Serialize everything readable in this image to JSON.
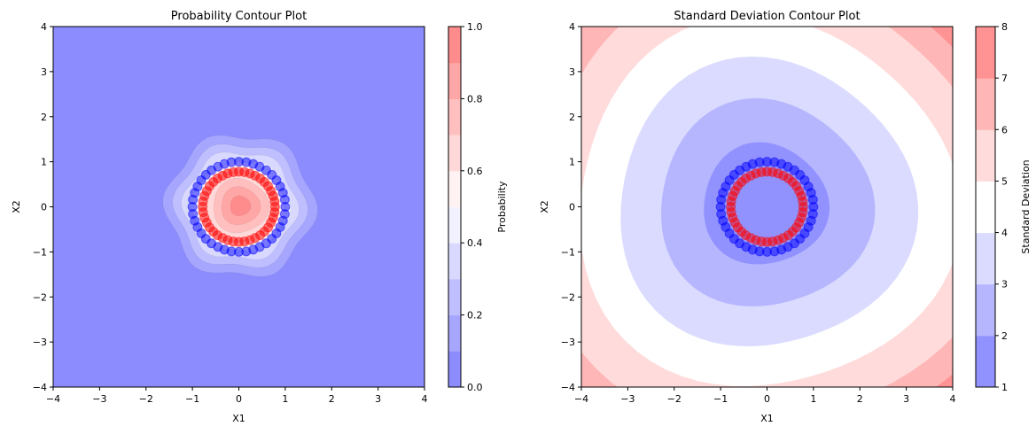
{
  "chart_data": [
    {
      "type": "contour",
      "title": "Probability Contour Plot",
      "xlabel": "X1",
      "ylabel": "X2",
      "xlim": [
        -4,
        4
      ],
      "ylim": [
        -4,
        4
      ],
      "xticks": [
        "−4",
        "−3",
        "−2",
        "−1",
        "0",
        "1",
        "2",
        "3",
        "4"
      ],
      "yticks": [
        "−4",
        "−3",
        "−2",
        "−1",
        "0",
        "1",
        "2",
        "3",
        "4"
      ],
      "colormap": "bwr",
      "alpha": 0.5,
      "colorbar": {
        "label": "Probability",
        "levels": [
          0,
          0.1,
          0.2,
          0.3,
          0.4,
          0.5,
          0.6,
          0.7,
          0.8,
          0.9,
          1.0
        ],
        "ticks": [
          "0.0",
          "0.2",
          "0.4",
          "0.6",
          "0.8",
          "1.0"
        ]
      }
    },
    {
      "type": "contour",
      "title": "Standard Deviation Contour Plot",
      "xlabel": "X1",
      "ylabel": "X2",
      "xlim": [
        -4,
        4
      ],
      "ylim": [
        -4,
        4
      ],
      "xticks": [
        "−4",
        "−3",
        "−2",
        "−1",
        "0",
        "1",
        "2",
        "3",
        "4"
      ],
      "yticks": [
        "−4",
        "−3",
        "−2",
        "−1",
        "0",
        "1",
        "2",
        "3",
        "4"
      ],
      "colormap": "bwr",
      "alpha": 0.5,
      "colorbar": {
        "label": "Standard Deviation",
        "levels": [
          1,
          2,
          3,
          4,
          5,
          6,
          7,
          8
        ],
        "ticks": [
          "1",
          "2",
          "3",
          "4",
          "5",
          "6",
          "7",
          "8"
        ]
      }
    }
  ],
  "scatter": {
    "class_blue": {
      "color": "#0000ff",
      "points": [
        [
          1.0,
          0.0
        ],
        [
          0.99,
          0.16
        ],
        [
          0.95,
          0.31
        ],
        [
          0.89,
          0.45
        ],
        [
          0.81,
          0.59
        ],
        [
          0.71,
          0.71
        ],
        [
          0.59,
          0.81
        ],
        [
          0.45,
          0.89
        ],
        [
          0.31,
          0.95
        ],
        [
          0.16,
          0.99
        ],
        [
          0.0,
          1.0
        ],
        [
          -0.16,
          0.99
        ],
        [
          -0.31,
          0.95
        ],
        [
          -0.45,
          0.89
        ],
        [
          -0.59,
          0.81
        ],
        [
          -0.71,
          0.71
        ],
        [
          -0.81,
          0.59
        ],
        [
          -0.89,
          0.45
        ],
        [
          -0.95,
          0.31
        ],
        [
          -0.99,
          0.16
        ],
        [
          -1.0,
          0.0
        ],
        [
          -0.99,
          -0.16
        ],
        [
          -0.95,
          -0.31
        ],
        [
          -0.89,
          -0.45
        ],
        [
          -0.81,
          -0.59
        ],
        [
          -0.71,
          -0.71
        ],
        [
          -0.59,
          -0.81
        ],
        [
          -0.45,
          -0.89
        ],
        [
          -0.31,
          -0.95
        ],
        [
          -0.16,
          -0.99
        ],
        [
          0.0,
          -1.0
        ],
        [
          0.16,
          -0.99
        ],
        [
          0.31,
          -0.95
        ],
        [
          0.45,
          -0.89
        ],
        [
          0.59,
          -0.81
        ],
        [
          0.71,
          -0.71
        ],
        [
          0.81,
          -0.59
        ],
        [
          0.89,
          -0.45
        ],
        [
          0.95,
          -0.31
        ],
        [
          0.99,
          -0.16
        ]
      ]
    },
    "class_red": {
      "color": "#ff0000",
      "points": [
        [
          0.78,
          0.0
        ],
        [
          0.77,
          0.12
        ],
        [
          0.74,
          0.24
        ],
        [
          0.69,
          0.35
        ],
        [
          0.63,
          0.46
        ],
        [
          0.55,
          0.55
        ],
        [
          0.46,
          0.63
        ],
        [
          0.35,
          0.69
        ],
        [
          0.24,
          0.74
        ],
        [
          0.12,
          0.77
        ],
        [
          0.0,
          0.78
        ],
        [
          -0.12,
          0.77
        ],
        [
          -0.24,
          0.74
        ],
        [
          -0.35,
          0.69
        ],
        [
          -0.46,
          0.63
        ],
        [
          -0.55,
          0.55
        ],
        [
          -0.63,
          0.46
        ],
        [
          -0.69,
          0.35
        ],
        [
          -0.74,
          0.24
        ],
        [
          -0.77,
          0.12
        ],
        [
          -0.78,
          0.0
        ],
        [
          -0.77,
          -0.12
        ],
        [
          -0.74,
          -0.24
        ],
        [
          -0.69,
          -0.35
        ],
        [
          -0.63,
          -0.46
        ],
        [
          -0.55,
          -0.55
        ],
        [
          -0.46,
          -0.63
        ],
        [
          -0.35,
          -0.69
        ],
        [
          -0.24,
          -0.74
        ],
        [
          -0.12,
          -0.77
        ],
        [
          0.0,
          -0.78
        ],
        [
          0.12,
          -0.77
        ],
        [
          0.24,
          -0.74
        ],
        [
          0.35,
          -0.69
        ],
        [
          0.46,
          -0.63
        ],
        [
          0.55,
          -0.55
        ],
        [
          0.63,
          -0.46
        ],
        [
          0.69,
          -0.35
        ],
        [
          0.74,
          -0.24
        ],
        [
          0.77,
          -0.12
        ]
      ]
    }
  }
}
